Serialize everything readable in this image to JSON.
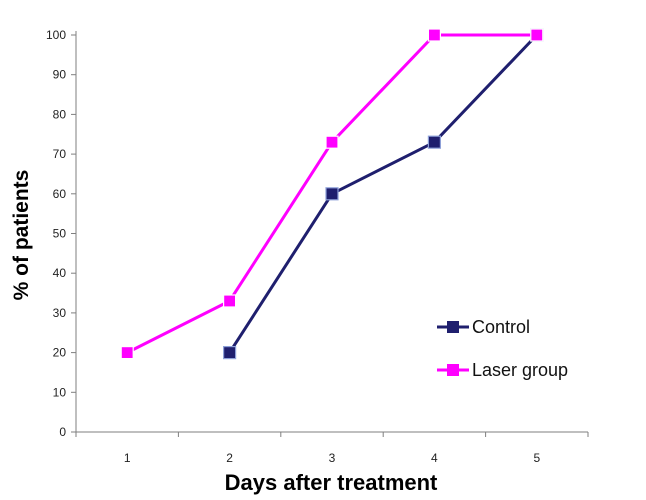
{
  "chart_data": {
    "type": "line",
    "xlabel": "Days after treatment",
    "ylabel": "% of patients",
    "categories": [
      "1",
      "2",
      "3",
      "4",
      "5"
    ],
    "ylim": [
      0,
      100
    ],
    "yticks": [
      "0",
      "10",
      "20",
      "30",
      "40",
      "50",
      "60",
      "70",
      "80",
      "90",
      "100"
    ],
    "grid": false,
    "legend_position": "right",
    "series": [
      {
        "name": "Control",
        "color": "#1f1f6e",
        "values": [
          null,
          20,
          60,
          73,
          100
        ]
      },
      {
        "name": "Laser group",
        "color": "#ff00ff",
        "values": [
          20,
          33,
          73,
          100,
          100
        ]
      }
    ]
  }
}
